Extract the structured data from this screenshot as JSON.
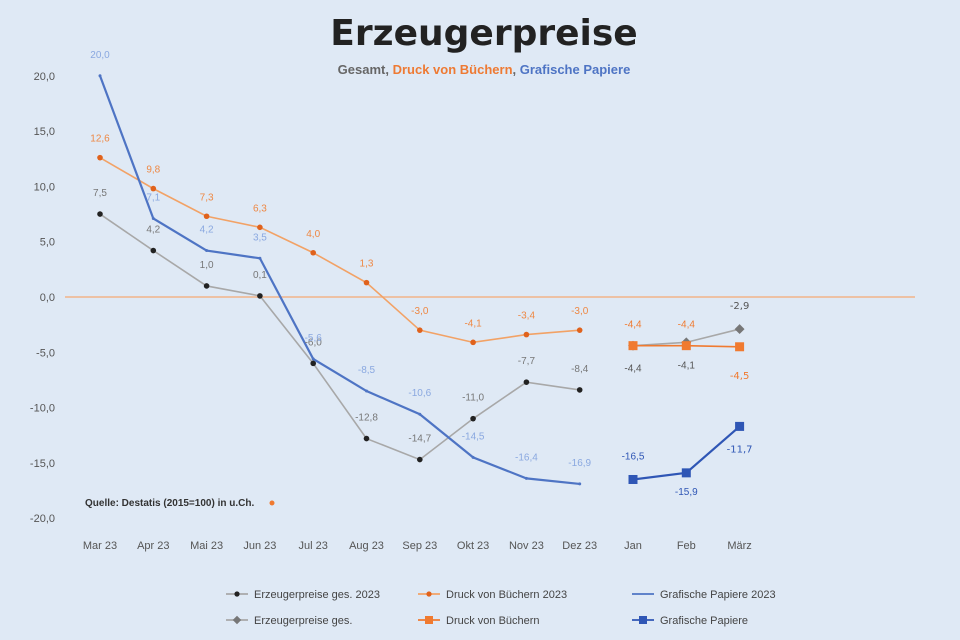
{
  "chart_data": {
    "type": "line",
    "title": "Erzeugerpreise",
    "subtitle": {
      "part1": "Gesamt, ",
      "part2": "Druck von Büchern",
      "part3": ", ",
      "part4": "Grafische Papiere"
    },
    "source_note": "Quelle: Destatis (2015=100) in u.Ch.",
    "categories": [
      "Mar 23",
      "Apr 23",
      "Mai 23",
      "Jun 23",
      "Jul 23",
      "Aug 23",
      "Sep 23",
      "Okt 23",
      "Nov 23",
      "Dez 23",
      "Jan",
      "Feb",
      "März"
    ],
    "ylim": [
      -20,
      22
    ],
    "yticks": [
      {
        "v": 20,
        "label": "20,0"
      },
      {
        "v": 15,
        "label": "15,0"
      },
      {
        "v": 10,
        "label": "10,0"
      },
      {
        "v": 5,
        "label": "5,0"
      },
      {
        "v": 0,
        "label": "0,0"
      },
      {
        "v": -5,
        "label": "-5,0"
      },
      {
        "v": -10,
        "label": "-10,0"
      },
      {
        "v": -15,
        "label": "-15,0"
      },
      {
        "v": -20,
        "label": "-20,0"
      }
    ],
    "series": [
      {
        "name": "Erzeugerpreise ges. 2023",
        "color": "#a8a8a8",
        "marker_color": "#222222",
        "marker": "dot",
        "values": [
          7.5,
          4.2,
          1.0,
          0.1,
          -6.0,
          -12.8,
          -14.7,
          -11.0,
          -7.7,
          -8.4,
          null,
          null,
          null
        ],
        "labels": [
          "7,5",
          "4,2",
          "1,0",
          "0,1",
          "-6,0",
          "-12,8",
          "-14,7",
          "-11,0",
          "-7,7",
          "-8,4",
          "",
          "",
          ""
        ],
        "label_color": "#777777"
      },
      {
        "name": "Druck von Büchern 2023",
        "color": "#f2a266",
        "marker_color": "#e0621c",
        "marker": "dot",
        "values": [
          12.6,
          9.8,
          7.3,
          6.3,
          4.0,
          1.3,
          -3.0,
          -4.1,
          -3.4,
          -3.0,
          null,
          null,
          null
        ],
        "labels": [
          "12,6",
          "9,8",
          "7,3",
          "6,3",
          "4,0",
          "1,3",
          "-3,0",
          "-4,1",
          "-3,4",
          "-3,0",
          "",
          "",
          ""
        ],
        "label_color": "#ee8844"
      },
      {
        "name": "Grafische Papiere 2023",
        "color": "#4e74c4",
        "marker_color": "#4e74c4",
        "marker": "none",
        "values": [
          20.0,
          7.1,
          4.2,
          3.5,
          -5.6,
          -8.5,
          -10.6,
          -14.5,
          -16.4,
          -16.9,
          null,
          null,
          null
        ],
        "labels": [
          "20,0",
          "7,1",
          "4,2",
          "3,5",
          "-5,6",
          "-8,5",
          "-10,6",
          "-14,5",
          "-16,4",
          "-16,9",
          "",
          "",
          ""
        ],
        "label_color": "#8aa8e0"
      },
      {
        "name": "Erzeugerpreise ges.",
        "color": "#a8a8a8",
        "marker_color": "#777777",
        "marker": "diamond",
        "values": [
          null,
          null,
          null,
          null,
          null,
          null,
          null,
          null,
          null,
          null,
          -4.4,
          -4.1,
          -2.9
        ],
        "labels": [
          "",
          "",
          "",
          "",
          "",
          "",
          "",
          "",
          "",
          "",
          "-4,4",
          "-4,1",
          "-2,9"
        ],
        "label_color": "#555555"
      },
      {
        "name": "Druck von Büchern",
        "color": "#f07a30",
        "marker_color": "#f07a30",
        "marker": "square",
        "values": [
          null,
          null,
          null,
          null,
          null,
          null,
          null,
          null,
          null,
          null,
          -4.4,
          -4.4,
          -4.5
        ],
        "labels": [
          "",
          "",
          "",
          "",
          "",
          "",
          "",
          "",
          "",
          "",
          "-4,4",
          "-4,4",
          "-4,5"
        ],
        "label_color": "#f07a30"
      },
      {
        "name": "Grafische Papiere",
        "color": "#2f56b5",
        "marker_color": "#2f56b5",
        "marker": "square",
        "values": [
          null,
          null,
          null,
          null,
          null,
          null,
          null,
          null,
          null,
          null,
          -16.5,
          -15.9,
          -11.7
        ],
        "labels": [
          "",
          "",
          "",
          "",
          "",
          "",
          "",
          "",
          "",
          "",
          "-16,5",
          "-15,9",
          "-11,7"
        ],
        "label_color": "#2f56b5"
      }
    ],
    "legend_position": "bottom"
  },
  "colors": {
    "background": "#dfe9f5",
    "zero_line": "#f2b48a",
    "title": "#222222",
    "subtitle_gray": "#666666",
    "subtitle_orange": "#ee7a33",
    "subtitle_blue": "#4e74c4"
  }
}
